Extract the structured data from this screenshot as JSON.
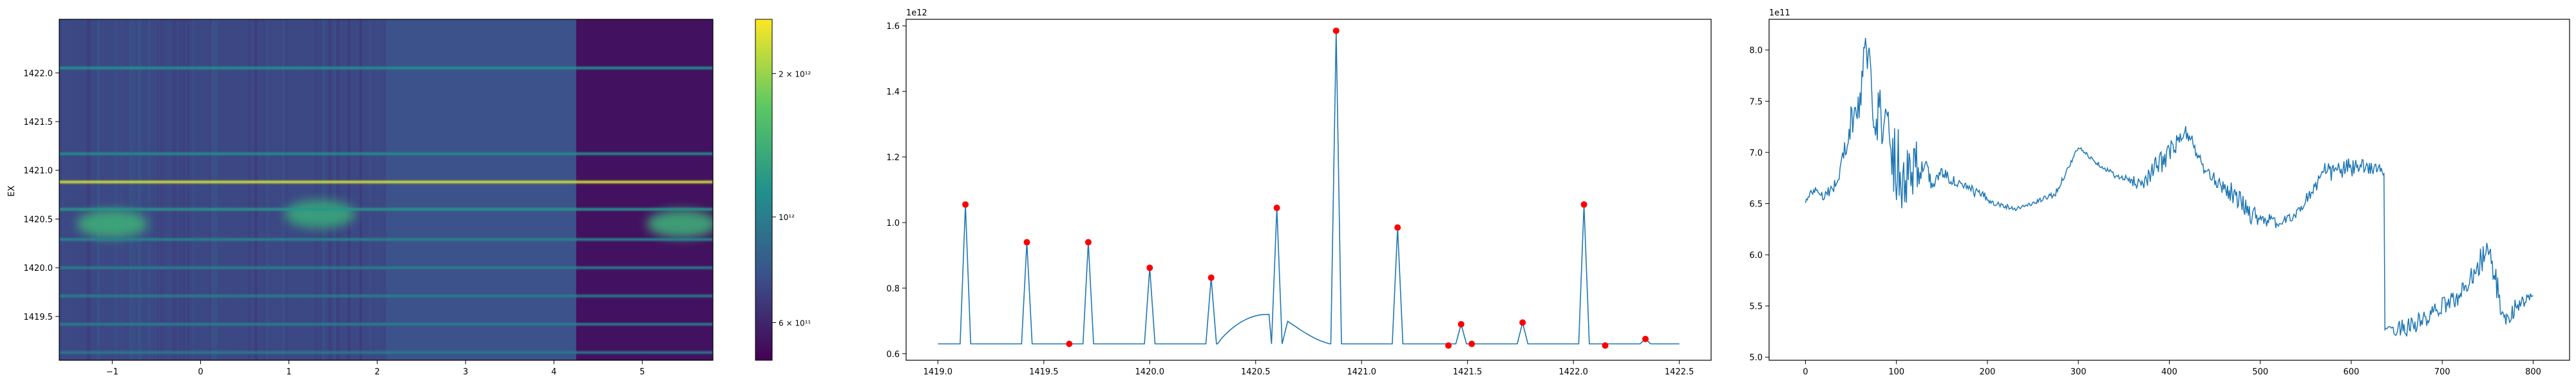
{
  "figure": {
    "background": "#ffffff"
  },
  "chart_data": [
    {
      "type": "heatmap",
      "ylabel": "EX",
      "xlim": [
        -1.6,
        5.8
      ],
      "ylim": [
        1419.05,
        1422.55
      ],
      "x_ticks": [
        -1,
        0,
        1,
        2,
        3,
        4,
        5
      ],
      "x_tick_labels": [
        "−1",
        "0",
        "1",
        "2",
        "3",
        "4",
        "5"
      ],
      "y_ticks": [
        1419.5,
        1420.0,
        1420.5,
        1421.0,
        1421.5,
        1422.0
      ],
      "y_tick_labels": [
        "1419.5",
        "1420.0",
        "1420.5",
        "1421.0",
        "1421.5",
        "1422.0"
      ],
      "colormap": "viridis",
      "colorbar": {
        "scale": "log",
        "range": [
          500000000000.0,
          2600000000000.0
        ],
        "ticks": [
          600000000000.0,
          1000000000000.0,
          2000000000000.0
        ],
        "tick_labels": [
          "6 × 10¹¹",
          "10¹²",
          "2 × 10¹²"
        ]
      },
      "background_regions": [
        {
          "x": [
            -1.6,
            2.1
          ],
          "level": 0.22
        },
        {
          "x": [
            2.1,
            4.25
          ],
          "level": 0.25
        },
        {
          "x": [
            4.25,
            5.8
          ],
          "level": 0.05
        }
      ],
      "horizontal_bands": [
        {
          "y": 1420.88,
          "level": 0.93
        },
        {
          "y": 1422.05,
          "level": 0.5
        },
        {
          "y": 1421.17,
          "level": 0.48
        },
        {
          "y": 1420.6,
          "level": 0.52
        },
        {
          "y": 1420.29,
          "level": 0.45
        },
        {
          "y": 1420.0,
          "level": 0.42
        },
        {
          "y": 1419.71,
          "level": 0.42
        },
        {
          "y": 1419.42,
          "level": 0.42
        },
        {
          "y": 1419.13,
          "level": 0.4
        }
      ],
      "hotspots": [
        {
          "x": -1.0,
          "y": 1420.45,
          "level": 0.62
        },
        {
          "x": 1.35,
          "y": 1420.55,
          "level": 0.6
        },
        {
          "x": 5.45,
          "y": 1420.45,
          "level": 0.62
        }
      ]
    },
    {
      "type": "line",
      "xlim": [
        1418.85,
        1422.65
      ],
      "ylim": [
        0.58,
        1.62
      ],
      "x_ticks": [
        1419.0,
        1419.5,
        1420.0,
        1420.5,
        1421.0,
        1421.5,
        1422.0,
        1422.5
      ],
      "x_tick_labels": [
        "1419.0",
        "1419.5",
        "1420.0",
        "1420.5",
        "1421.0",
        "1421.5",
        "1422.0",
        "1422.5"
      ],
      "y_ticks": [
        0.6,
        0.8,
        1.0,
        1.2,
        1.4,
        1.6
      ],
      "y_tick_labels": [
        "0.6",
        "0.8",
        "1.0",
        "1.2",
        "1.4",
        "1.6"
      ],
      "y_offset_label": "1e12",
      "baseline": 0.63,
      "series": [
        {
          "color": "#1f77b4"
        }
      ],
      "peaks": [
        {
          "x": 1419.13,
          "y": 1.055
        },
        {
          "x": 1419.42,
          "y": 0.94
        },
        {
          "x": 1419.71,
          "y": 0.94
        },
        {
          "x": 1420.0,
          "y": 0.862
        },
        {
          "x": 1420.29,
          "y": 0.832
        },
        {
          "x": 1420.6,
          "y": 1.045
        },
        {
          "x": 1420.88,
          "y": 1.585
        },
        {
          "x": 1421.17,
          "y": 0.985
        },
        {
          "x": 1421.47,
          "y": 0.69
        },
        {
          "x": 1421.76,
          "y": 0.695
        },
        {
          "x": 1422.05,
          "y": 1.055
        },
        {
          "x": 1422.34,
          "y": 0.645
        }
      ],
      "bump": {
        "x0": 1420.32,
        "x1": 1420.85,
        "y_peak": 0.72
      },
      "markers": [
        {
          "x": 1419.13,
          "y": 1.055
        },
        {
          "x": 1419.42,
          "y": 0.94
        },
        {
          "x": 1419.62,
          "y": 0.63
        },
        {
          "x": 1419.71,
          "y": 0.94
        },
        {
          "x": 1420.0,
          "y": 0.862
        },
        {
          "x": 1420.29,
          "y": 0.832
        },
        {
          "x": 1420.6,
          "y": 1.045
        },
        {
          "x": 1420.88,
          "y": 1.585
        },
        {
          "x": 1421.17,
          "y": 0.985
        },
        {
          "x": 1421.41,
          "y": 0.625
        },
        {
          "x": 1421.47,
          "y": 0.69
        },
        {
          "x": 1421.52,
          "y": 0.63
        },
        {
          "x": 1421.76,
          "y": 0.695
        },
        {
          "x": 1422.05,
          "y": 1.055
        },
        {
          "x": 1422.15,
          "y": 0.625
        },
        {
          "x": 1422.34,
          "y": 0.645
        }
      ],
      "marker_color": "#ff0000"
    },
    {
      "type": "line",
      "xlim": [
        -40,
        840
      ],
      "ylim": [
        4.97,
        8.3
      ],
      "x_ticks": [
        0,
        100,
        200,
        300,
        400,
        500,
        600,
        700,
        800
      ],
      "x_tick_labels": [
        "0",
        "100",
        "200",
        "300",
        "400",
        "500",
        "600",
        "700",
        "800"
      ],
      "y_ticks": [
        5.0,
        5.5,
        6.0,
        6.5,
        7.0,
        7.5,
        8.0
      ],
      "y_tick_labels": [
        "5.0",
        "5.5",
        "6.0",
        "6.5",
        "7.0",
        "7.5",
        "8.0"
      ],
      "y_offset_label": "1e11",
      "series": [
        {
          "color": "#1f77b4"
        }
      ],
      "anchors": [
        [
          0,
          6.52,
          0.02
        ],
        [
          10,
          6.65,
          0.05
        ],
        [
          20,
          6.58,
          0.05
        ],
        [
          35,
          6.7,
          0.07
        ],
        [
          50,
          7.3,
          0.15
        ],
        [
          60,
          7.45,
          0.2
        ],
        [
          65,
          8.1,
          0.15
        ],
        [
          75,
          7.5,
          0.3
        ],
        [
          90,
          7.2,
          0.35
        ],
        [
          100,
          6.9,
          0.4
        ],
        [
          110,
          6.8,
          0.4
        ],
        [
          120,
          6.9,
          0.3
        ],
        [
          130,
          6.85,
          0.12
        ],
        [
          140,
          6.7,
          0.08
        ],
        [
          150,
          6.8,
          0.06
        ],
        [
          170,
          6.68,
          0.05
        ],
        [
          190,
          6.6,
          0.05
        ],
        [
          210,
          6.5,
          0.03
        ],
        [
          230,
          6.45,
          0.02
        ],
        [
          250,
          6.5,
          0.02
        ],
        [
          275,
          6.6,
          0.03
        ],
        [
          300,
          7.05,
          0.02
        ],
        [
          320,
          6.9,
          0.02
        ],
        [
          345,
          6.75,
          0.03
        ],
        [
          370,
          6.7,
          0.07
        ],
        [
          390,
          6.9,
          0.12
        ],
        [
          410,
          7.1,
          0.1
        ],
        [
          420,
          7.2,
          0.08
        ],
        [
          440,
          6.8,
          0.05
        ],
        [
          470,
          6.6,
          0.1
        ],
        [
          490,
          6.4,
          0.1
        ],
        [
          520,
          6.3,
          0.05
        ],
        [
          540,
          6.4,
          0.04
        ],
        [
          555,
          6.6,
          0.08
        ],
        [
          570,
          6.8,
          0.1
        ],
        [
          600,
          6.85,
          0.1
        ],
        [
          630,
          6.85,
          0.05
        ],
        [
          636,
          6.8,
          0.03
        ],
        [
          637,
          5.25,
          0.03
        ],
        [
          660,
          5.3,
          0.1
        ],
        [
          680,
          5.35,
          0.1
        ],
        [
          700,
          5.5,
          0.08
        ],
        [
          720,
          5.6,
          0.1
        ],
        [
          735,
          5.85,
          0.12
        ],
        [
          750,
          6.05,
          0.15
        ],
        [
          760,
          5.7,
          0.15
        ],
        [
          770,
          5.3,
          0.12
        ],
        [
          780,
          5.5,
          0.08
        ],
        [
          800,
          5.6,
          0.04
        ]
      ]
    }
  ]
}
